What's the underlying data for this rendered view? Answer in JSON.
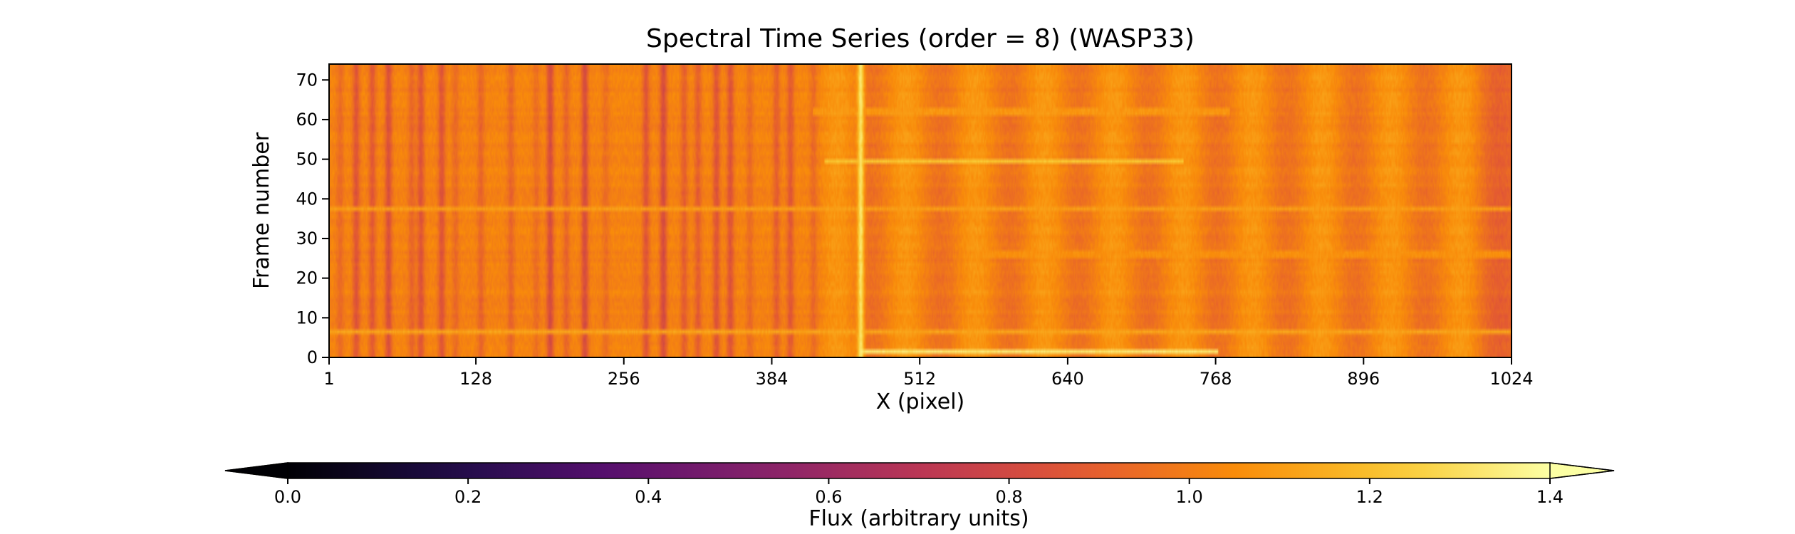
{
  "chart_data": {
    "type": "heatmap",
    "title": "Spectral Time Series (order = 8) (WASP33)",
    "xlabel": "X (pixel)",
    "ylabel": "Frame number",
    "xlim": [
      1,
      1024
    ],
    "ylim": [
      0,
      74
    ],
    "xticks": [
      1,
      128,
      256,
      384,
      512,
      640,
      768,
      896,
      1024
    ],
    "yticks": [
      0,
      10,
      20,
      30,
      40,
      50,
      60,
      70
    ],
    "grid": false,
    "colormap": "inferno",
    "colorbar": {
      "label": "Flux (arbitrary units)",
      "range": [
        0.0,
        1.4
      ],
      "ticks": [
        "0.0",
        "0.2",
        "0.4",
        "0.6",
        "0.8",
        "1.0",
        "1.2",
        "1.4"
      ],
      "extend": "both",
      "orientation": "horizontal"
    },
    "baseline_flux": 1.02,
    "absorption_lines": [
      {
        "x": 10,
        "depth": 0.08
      },
      {
        "x": 24,
        "depth": 0.16
      },
      {
        "x": 38,
        "depth": 0.14
      },
      {
        "x": 52,
        "depth": 0.18
      },
      {
        "x": 72,
        "depth": 0.1
      },
      {
        "x": 80,
        "depth": 0.16
      },
      {
        "x": 98,
        "depth": 0.16
      },
      {
        "x": 110,
        "depth": 0.08
      },
      {
        "x": 132,
        "depth": 0.1
      },
      {
        "x": 158,
        "depth": 0.1
      },
      {
        "x": 180,
        "depth": 0.07
      },
      {
        "x": 192,
        "depth": 0.2
      },
      {
        "x": 206,
        "depth": 0.1
      },
      {
        "x": 222,
        "depth": 0.2
      },
      {
        "x": 240,
        "depth": 0.07
      },
      {
        "x": 275,
        "depth": 0.16
      },
      {
        "x": 290,
        "depth": 0.2
      },
      {
        "x": 308,
        "depth": 0.12
      },
      {
        "x": 320,
        "depth": 0.12
      },
      {
        "x": 336,
        "depth": 0.16
      },
      {
        "x": 348,
        "depth": 0.16
      },
      {
        "x": 365,
        "depth": 0.08
      },
      {
        "x": 388,
        "depth": 0.12
      },
      {
        "x": 400,
        "depth": 0.14
      },
      {
        "x": 420,
        "depth": 0.08
      }
    ],
    "emission_lines": [
      {
        "x": 461,
        "peak": 1.35
      }
    ],
    "continuum_modulation_start": 425,
    "continuum_modulation_period": 60,
    "edge_dimming_start": 990,
    "horizontal_features": [
      {
        "frame": 1.5,
        "x_from": 461,
        "x_to": 770,
        "flux": 1.32
      },
      {
        "frame": 6.5,
        "x_from": 1,
        "x_to": 1024,
        "flux": 1.12
      },
      {
        "frame": 37.5,
        "x_from": 1,
        "x_to": 1024,
        "flux": 1.1
      },
      {
        "frame": 49.5,
        "x_from": 430,
        "x_to": 740,
        "flux": 1.22
      },
      {
        "frame": 62,
        "x_from": 420,
        "x_to": 780,
        "flux": 1.08
      },
      {
        "frame": 26,
        "x_from": 560,
        "x_to": 1024,
        "flux": 1.06
      }
    ]
  }
}
